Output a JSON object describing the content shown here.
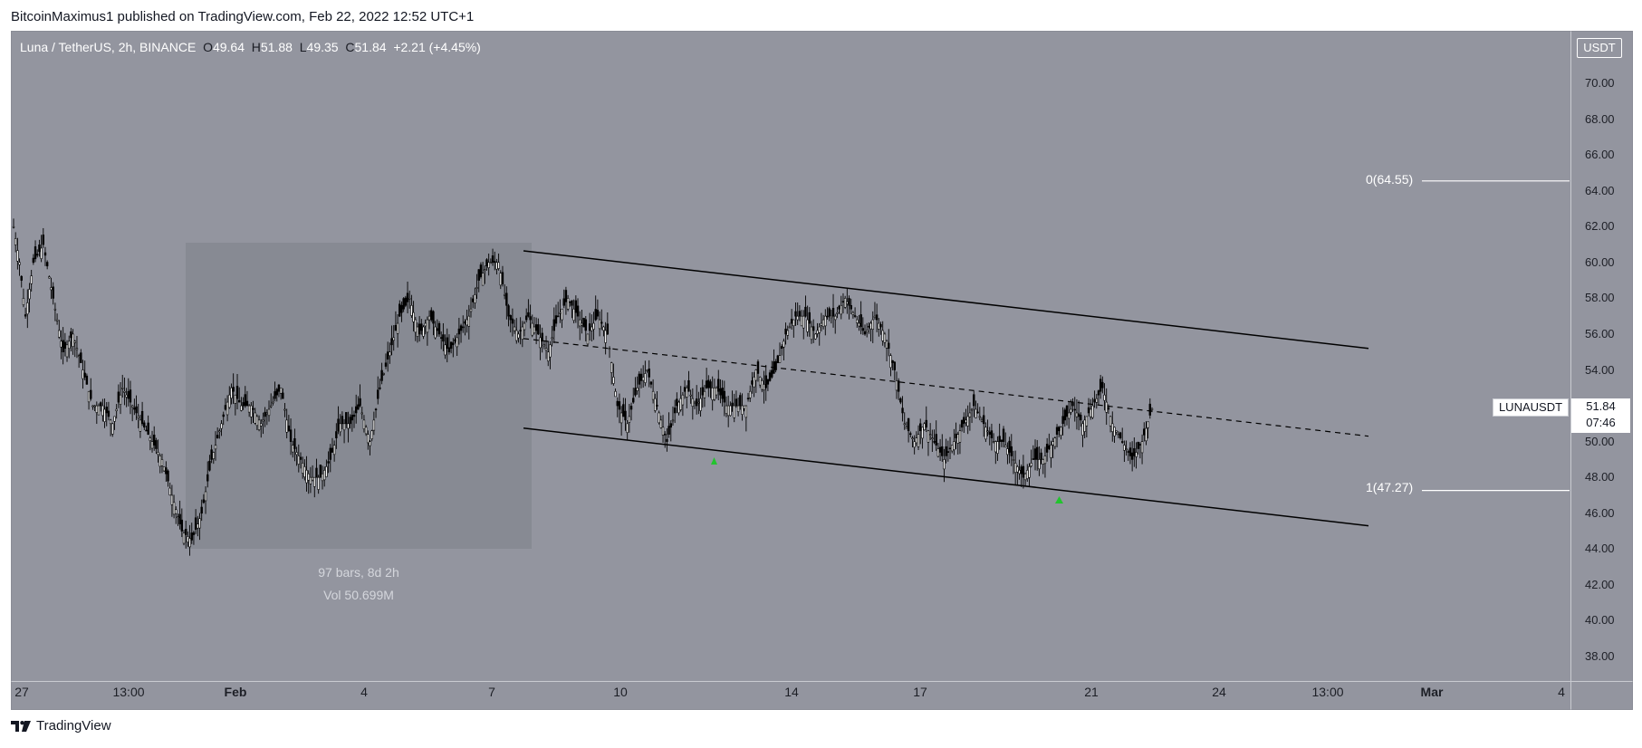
{
  "header": {
    "published_by": "BitcoinMaximus1 published on TradingView.com, Feb 22, 2022 12:52 UTC+1"
  },
  "legend": {
    "symbol": "Luna / TetherUS, 2h, BINANCE",
    "o_label": "O",
    "o_value": "49.64",
    "h_label": "H",
    "h_value": "51.88",
    "l_label": "L",
    "l_value": "49.35",
    "c_label": "C",
    "c_value": "51.84",
    "change": "+2.21 (+4.45%)"
  },
  "currency_tag": "USDT",
  "price_label": {
    "symbol": "LUNAUSDT",
    "price": "51.84",
    "countdown": "07:46"
  },
  "measure": {
    "bars": "97 bars, 8d 2h",
    "volume": "Vol 50.699M"
  },
  "fib": {
    "top": "0(64.55)",
    "bottom": "1(47.27)"
  },
  "footer": {
    "brand": "TradingView"
  },
  "colors": {
    "background": "#93959f",
    "lines": "#000000",
    "fib": "#ffffff",
    "markers": "#22c42e",
    "range_box": "#868891"
  },
  "chart_data": {
    "type": "candlestick",
    "y_ticks": [
      "70.00",
      "68.00",
      "66.00",
      "64.00",
      "62.00",
      "60.00",
      "58.00",
      "56.00",
      "54.00",
      "52.00",
      "50.00",
      "48.00",
      "46.00",
      "44.00",
      "42.00",
      "40.00",
      "38.00"
    ],
    "x_ticks": [
      "27",
      "13:00",
      "Feb",
      "4",
      "7",
      "10",
      "14",
      "17",
      "21",
      "24",
      "13:00",
      "Mar",
      "4"
    ],
    "ylim": [
      36.8,
      72.0
    ],
    "close_path": [
      [
        0,
        62
      ],
      [
        3,
        60
      ],
      [
        6,
        57
      ],
      [
        10,
        60
      ],
      [
        15,
        61
      ],
      [
        20,
        58
      ],
      [
        25,
        55
      ],
      [
        30,
        56
      ],
      [
        35,
        54
      ],
      [
        40,
        52
      ],
      [
        45,
        52
      ],
      [
        50,
        51
      ],
      [
        55,
        53
      ],
      [
        60,
        52
      ],
      [
        65,
        51
      ],
      [
        70,
        50
      ],
      [
        75,
        49
      ],
      [
        80,
        47
      ],
      [
        85,
        45
      ],
      [
        90,
        44.5
      ],
      [
        95,
        46
      ],
      [
        100,
        49
      ],
      [
        105,
        51
      ],
      [
        110,
        53
      ],
      [
        115,
        52
      ],
      [
        120,
        52
      ],
      [
        125,
        51
      ],
      [
        130,
        52
      ],
      [
        135,
        53
      ],
      [
        140,
        50
      ],
      [
        145,
        49
      ],
      [
        150,
        48
      ],
      [
        155,
        48
      ],
      [
        160,
        49
      ],
      [
        165,
        51
      ],
      [
        170,
        51
      ],
      [
        175,
        52
      ],
      [
        180,
        50
      ],
      [
        185,
        53
      ],
      [
        190,
        55
      ],
      [
        195,
        57
      ],
      [
        200,
        58
      ],
      [
        205,
        56
      ],
      [
        210,
        57
      ],
      [
        215,
        56
      ],
      [
        220,
        55
      ],
      [
        225,
        56
      ],
      [
        230,
        57
      ],
      [
        235,
        59
      ],
      [
        240,
        60
      ],
      [
        245,
        60
      ],
      [
        250,
        57
      ],
      [
        255,
        56
      ],
      [
        260,
        57
      ],
      [
        265,
        56
      ],
      [
        270,
        55
      ],
      [
        275,
        57
      ],
      [
        280,
        58
      ],
      [
        285,
        57
      ],
      [
        290,
        56
      ],
      [
        295,
        57
      ],
      [
        300,
        56
      ],
      [
        305,
        52
      ],
      [
        310,
        51
      ],
      [
        315,
        53
      ],
      [
        320,
        54
      ],
      [
        325,
        52
      ],
      [
        330,
        50
      ],
      [
        335,
        52
      ],
      [
        340,
        53
      ],
      [
        345,
        52
      ],
      [
        350,
        53
      ],
      [
        355,
        53
      ],
      [
        360,
        52
      ],
      [
        365,
        52
      ],
      [
        370,
        52
      ],
      [
        375,
        54
      ],
      [
        380,
        53
      ],
      [
        385,
        54
      ],
      [
        390,
        56
      ],
      [
        395,
        57
      ],
      [
        400,
        57
      ],
      [
        405,
        56
      ],
      [
        410,
        57
      ],
      [
        415,
        57
      ],
      [
        420,
        58
      ],
      [
        425,
        57
      ],
      [
        430,
        56
      ],
      [
        435,
        57
      ],
      [
        440,
        56
      ],
      [
        445,
        54
      ],
      [
        450,
        51
      ],
      [
        455,
        50
      ],
      [
        460,
        51
      ],
      [
        465,
        50
      ],
      [
        470,
        49
      ],
      [
        475,
        50
      ],
      [
        480,
        51
      ],
      [
        485,
        52
      ],
      [
        490,
        51
      ],
      [
        495,
        50
      ],
      [
        500,
        50
      ],
      [
        505,
        49
      ],
      [
        510,
        48
      ],
      [
        515,
        49
      ],
      [
        520,
        49
      ],
      [
        525,
        50
      ],
      [
        530,
        51
      ],
      [
        535,
        52
      ],
      [
        540,
        51
      ],
      [
        545,
        52
      ],
      [
        550,
        53
      ],
      [
        555,
        51
      ],
      [
        560,
        50
      ],
      [
        565,
        49
      ],
      [
        570,
        50
      ],
      [
        575,
        51.84
      ]
    ],
    "channel_upper": [
      [
        0,
        60.7
      ],
      [
        1
      ],
      [
        2,
        55.2
      ]
    ],
    "channel_mid": [
      [
        0,
        55.8
      ],
      [
        1
      ],
      [
        2,
        50.3
      ]
    ],
    "channel_lower": [
      [
        0,
        50.8
      ],
      [
        1
      ],
      [
        2,
        45.3
      ]
    ],
    "fib_levels": [
      64.55,
      47.27
    ],
    "last_price": 51.84
  }
}
